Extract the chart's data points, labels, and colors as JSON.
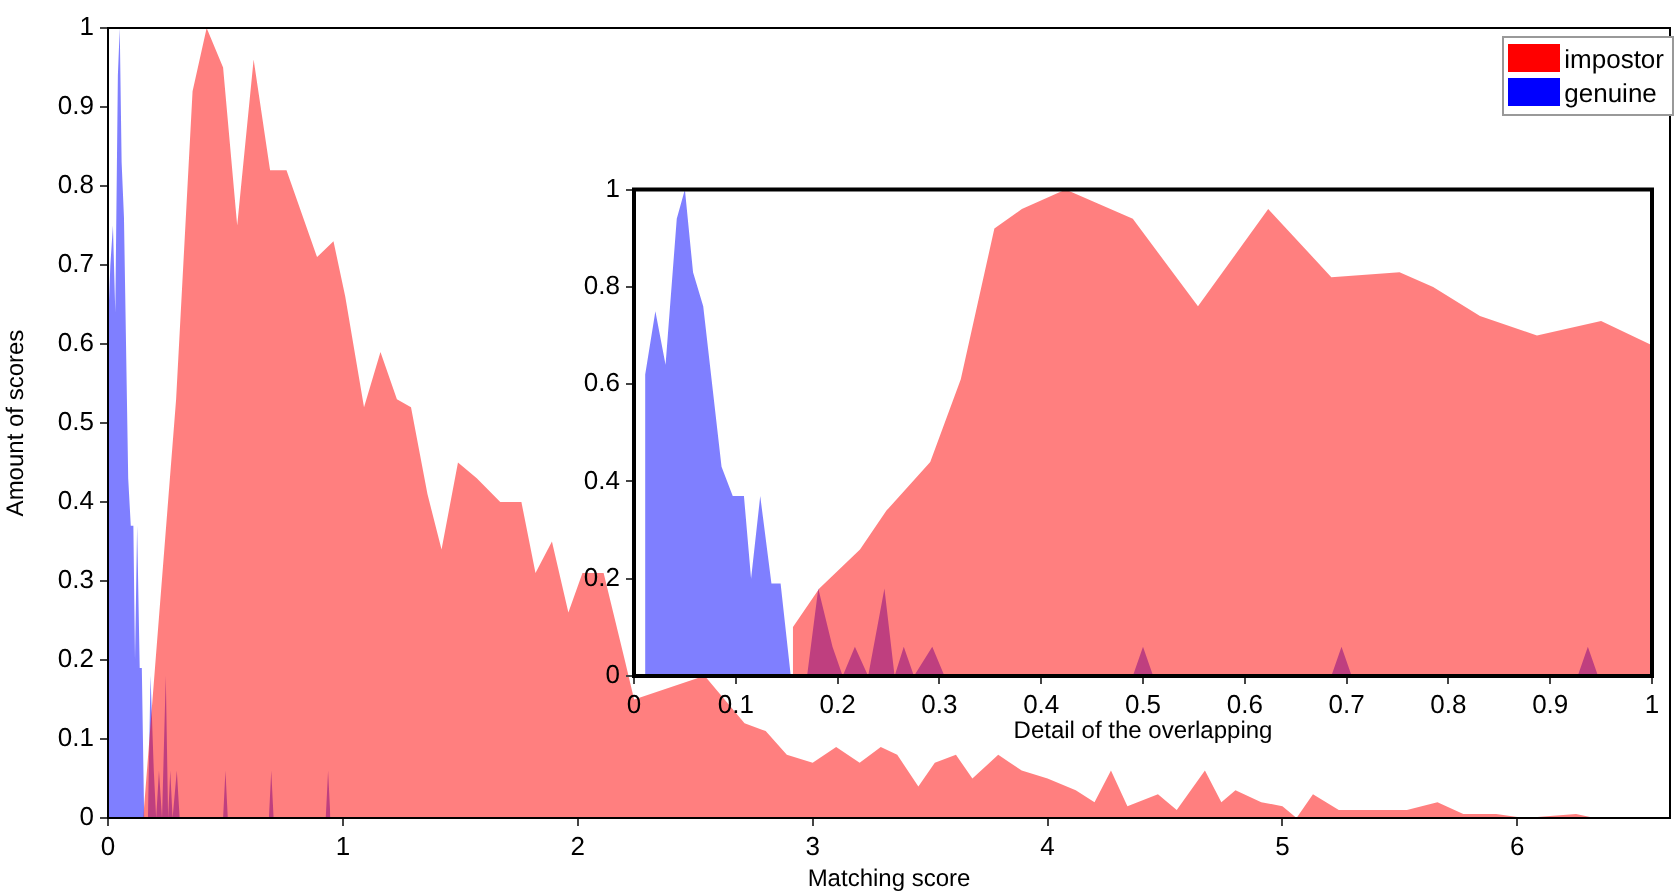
{
  "chart_data": [
    {
      "type": "area",
      "xlabel": "Matching score",
      "ylabel": "Amount of scores",
      "xlim": [
        0,
        6.65
      ],
      "xticks": [
        0,
        1,
        2,
        3,
        4,
        5,
        6
      ],
      "ylim": [
        0,
        1
      ],
      "yticks": [
        0,
        0.1,
        0.2,
        0.3,
        0.4,
        0.5,
        0.6,
        0.7,
        0.8,
        0.9,
        1
      ],
      "legend": "top right",
      "series": [
        {
          "name": "impostor",
          "color": "#ff0000",
          "x": [
            0.15,
            0.2,
            0.29,
            0.36,
            0.42,
            0.49,
            0.55,
            0.62,
            0.69,
            0.76,
            0.89,
            0.96,
            1.01,
            1.09,
            1.16,
            1.23,
            1.29,
            1.36,
            1.42,
            1.49,
            1.57,
            1.67,
            1.76,
            1.82,
            1.89,
            1.96,
            2.02,
            2.11,
            2.2,
            2.24,
            2.54,
            2.71,
            2.8,
            2.89,
            3.0,
            3.1,
            3.2,
            3.29,
            3.36,
            3.45,
            3.52,
            3.61,
            3.68,
            3.79,
            3.89,
            4.0,
            4.12,
            4.2,
            4.27,
            4.34,
            4.47,
            4.55,
            4.67,
            4.74,
            4.8,
            4.91,
            5.0,
            5.06,
            5.13,
            5.24,
            5.38,
            5.53,
            5.66,
            5.77,
            5.91,
            6.03,
            6.25,
            6.33
          ],
          "values": [
            0,
            0.19,
            0.53,
            0.92,
            1.0,
            0.95,
            0.75,
            0.96,
            0.82,
            0.82,
            0.71,
            0.73,
            0.66,
            0.52,
            0.59,
            0.53,
            0.52,
            0.41,
            0.34,
            0.45,
            0.43,
            0.4,
            0.4,
            0.31,
            0.35,
            0.26,
            0.31,
            0.31,
            0.2,
            0.15,
            0.18,
            0.12,
            0.11,
            0.08,
            0.07,
            0.09,
            0.07,
            0.09,
            0.08,
            0.04,
            0.07,
            0.08,
            0.05,
            0.08,
            0.06,
            0.05,
            0.035,
            0.02,
            0.06,
            0.015,
            0.03,
            0.01,
            0.06,
            0.02,
            0.035,
            0.02,
            0.015,
            0,
            0.03,
            0.01,
            0.01,
            0.01,
            0.02,
            0.005,
            0.005,
            0,
            0.005,
            0
          ]
        },
        {
          "name": "genuine",
          "color": "#0000ff",
          "x": [
            0,
            0.01,
            0.021,
            0.031,
            0.042,
            0.05,
            0.058,
            0.068,
            0.086,
            0.097,
            0.108,
            0.115,
            0.124,
            0.135,
            0.144,
            0.154,
            0.17,
            0.181,
            0.195,
            0.205,
            0.217,
            0.23,
            0.246,
            0.256,
            0.265,
            0.275,
            0.293,
            0.305,
            0.49,
            0.5,
            0.51,
            0.685,
            0.695,
            0.705,
            0.927,
            0.937,
            0.947
          ],
          "values": [
            0.62,
            0.7,
            0.75,
            0.64,
            0.94,
            1.0,
            0.83,
            0.76,
            0.43,
            0.37,
            0.37,
            0.2,
            0.37,
            0.19,
            0.19,
            0,
            0,
            0.18,
            0.06,
            0,
            0.06,
            0,
            0.18,
            0,
            0.06,
            0,
            0.06,
            0,
            0,
            0.06,
            0,
            0,
            0.06,
            0,
            0,
            0.06,
            0
          ]
        }
      ]
    },
    {
      "type": "area",
      "xlabel": "Detail of the overlapping",
      "xlim": [
        0,
        1
      ],
      "xticks": [
        0,
        0.1,
        0.2,
        0.3,
        0.4,
        0.5,
        0.6,
        0.7,
        0.8,
        0.9,
        1
      ],
      "ylim": [
        0,
        1
      ],
      "yticks": [
        0,
        0.2,
        0.4,
        0.6,
        0.8,
        1
      ],
      "series": [
        {
          "color": "#ff0000",
          "x": [
            0.156,
            0.156,
            0.182,
            0.222,
            0.248,
            0.291,
            0.321,
            0.354,
            0.381,
            0.424,
            0.49,
            0.554,
            0.623,
            0.685,
            0.752,
            0.785,
            0.831,
            0.887,
            0.95,
            1.0
          ],
          "values": [
            0,
            0.1,
            0.18,
            0.26,
            0.34,
            0.44,
            0.61,
            0.92,
            0.96,
            1.0,
            0.94,
            0.76,
            0.96,
            0.82,
            0.83,
            0.8,
            0.74,
            0.7,
            0.73,
            0.68
          ]
        },
        {
          "color": "#0000ff",
          "x": [
            0.01,
            0.011,
            0.021,
            0.031,
            0.042,
            0.05,
            0.058,
            0.068,
            0.086,
            0.097,
            0.108,
            0.115,
            0.124,
            0.135,
            0.144,
            0.154,
            0.17,
            0.181,
            0.195,
            0.205,
            0.217,
            0.23,
            0.246,
            0.256,
            0.265,
            0.275,
            0.293,
            0.305,
            0.49,
            0.5,
            0.51,
            0.685,
            0.695,
            0.705,
            0.927,
            0.937,
            0.947
          ],
          "values": [
            0,
            0.62,
            0.75,
            0.64,
            0.94,
            1.0,
            0.83,
            0.76,
            0.43,
            0.37,
            0.37,
            0.2,
            0.37,
            0.19,
            0.19,
            0,
            0,
            0.18,
            0.06,
            0,
            0.06,
            0,
            0.18,
            0,
            0.06,
            0,
            0.06,
            0,
            0,
            0.06,
            0,
            0,
            0.06,
            0,
            0,
            0.06,
            0
          ]
        }
      ]
    }
  ]
}
